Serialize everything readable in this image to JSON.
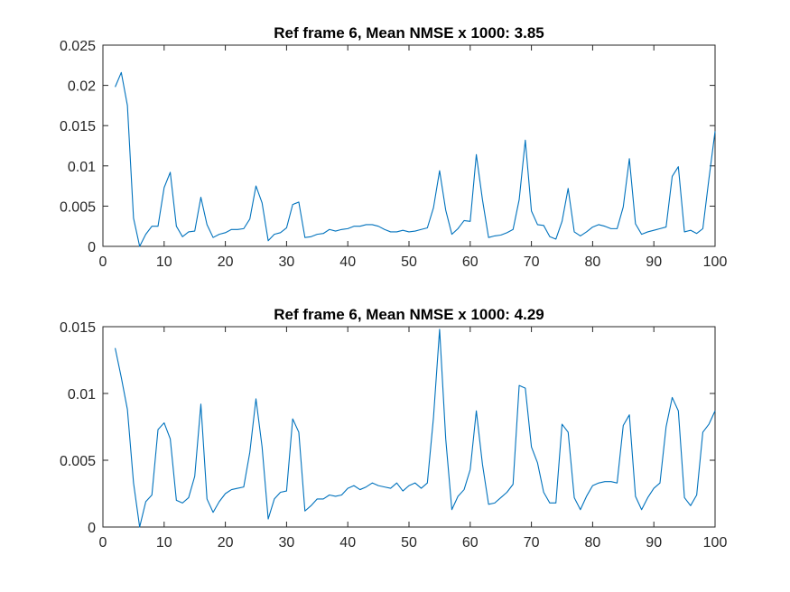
{
  "chart_data": [
    {
      "type": "line",
      "title": "Ref frame 6, Mean NMSE x 1000: 3.85",
      "xlabel": "",
      "ylabel": "",
      "xlim": [
        0,
        100
      ],
      "ylim": [
        0,
        0.025
      ],
      "xticks": [
        0,
        10,
        20,
        30,
        40,
        50,
        60,
        70,
        80,
        90,
        100
      ],
      "yticks": [
        0,
        0.005,
        0.01,
        0.015,
        0.02,
        0.025
      ],
      "xtick_labels": [
        "0",
        "10",
        "20",
        "30",
        "40",
        "50",
        "60",
        "70",
        "80",
        "90",
        "100"
      ],
      "ytick_labels": [
        "0",
        "0.005",
        "0.01",
        "0.015",
        "0.02",
        "0.025"
      ],
      "grid": false,
      "color": "#0072BD",
      "x": [
        2,
        3,
        4,
        5,
        6,
        7,
        8,
        9,
        10,
        11,
        12,
        13,
        14,
        15,
        16,
        17,
        18,
        19,
        20,
        21,
        22,
        23,
        24,
        25,
        26,
        27,
        28,
        29,
        30,
        31,
        32,
        33,
        34,
        35,
        36,
        37,
        38,
        39,
        40,
        41,
        42,
        43,
        44,
        45,
        46,
        47,
        48,
        49,
        50,
        51,
        52,
        53,
        54,
        55,
        56,
        57,
        58,
        59,
        60,
        61,
        62,
        63,
        64,
        65,
        66,
        67,
        68,
        69,
        70,
        71,
        72,
        73,
        74,
        75,
        76,
        77,
        78,
        79,
        80,
        81,
        82,
        83,
        84,
        85,
        86,
        87,
        88,
        89,
        90,
        91,
        92,
        93,
        94,
        95,
        96,
        97,
        98,
        99,
        100
      ],
      "y": [
        0.0198,
        0.0216,
        0.0175,
        0.0035,
        0.0,
        0.0015,
        0.0025,
        0.0025,
        0.0073,
        0.0092,
        0.0025,
        0.0012,
        0.0018,
        0.0019,
        0.0061,
        0.0027,
        0.0011,
        0.0015,
        0.0017,
        0.0021,
        0.0021,
        0.0022,
        0.0034,
        0.0075,
        0.0054,
        0.0007,
        0.0015,
        0.0017,
        0.0023,
        0.0052,
        0.0055,
        0.0011,
        0.0012,
        0.0015,
        0.0016,
        0.0021,
        0.0019,
        0.0021,
        0.0022,
        0.0025,
        0.0025,
        0.0027,
        0.0027,
        0.0025,
        0.0021,
        0.0018,
        0.0018,
        0.002,
        0.0018,
        0.0019,
        0.0021,
        0.0023,
        0.0048,
        0.0094,
        0.0045,
        0.0015,
        0.0022,
        0.0032,
        0.0031,
        0.0114,
        0.0058,
        0.0011,
        0.0013,
        0.0014,
        0.0017,
        0.0021,
        0.0058,
        0.0132,
        0.0044,
        0.0027,
        0.0026,
        0.0012,
        0.0009,
        0.0031,
        0.0072,
        0.0018,
        0.0013,
        0.0018,
        0.0024,
        0.0027,
        0.0025,
        0.0022,
        0.0022,
        0.0049,
        0.0109,
        0.0028,
        0.0015,
        0.0018,
        0.002,
        0.0022,
        0.0024,
        0.0087,
        0.0099,
        0.0018,
        0.002,
        0.0016,
        0.0022,
        0.0084,
        0.0143
      ]
    },
    {
      "type": "line",
      "title": "Ref frame 6, Mean NMSE x 1000: 4.29",
      "xlabel": "",
      "ylabel": "",
      "xlim": [
        0,
        100
      ],
      "ylim": [
        0,
        0.015
      ],
      "xticks": [
        0,
        10,
        20,
        30,
        40,
        50,
        60,
        70,
        80,
        90,
        100
      ],
      "yticks": [
        0,
        0.005,
        0.01,
        0.015
      ],
      "xtick_labels": [
        "0",
        "10",
        "20",
        "30",
        "40",
        "50",
        "60",
        "70",
        "80",
        "90",
        "100"
      ],
      "ytick_labels": [
        "0",
        "0.005",
        "0.01",
        "0.015"
      ],
      "grid": false,
      "color": "#0072BD",
      "x": [
        2,
        3,
        4,
        5,
        6,
        7,
        8,
        9,
        10,
        11,
        12,
        13,
        14,
        15,
        16,
        17,
        18,
        19,
        20,
        21,
        22,
        23,
        24,
        25,
        26,
        27,
        28,
        29,
        30,
        31,
        32,
        33,
        34,
        35,
        36,
        37,
        38,
        39,
        40,
        41,
        42,
        43,
        44,
        45,
        46,
        47,
        48,
        49,
        50,
        51,
        52,
        53,
        54,
        55,
        56,
        57,
        58,
        59,
        60,
        61,
        62,
        63,
        64,
        65,
        66,
        67,
        68,
        69,
        70,
        71,
        72,
        73,
        74,
        75,
        76,
        77,
        78,
        79,
        80,
        81,
        82,
        83,
        84,
        85,
        86,
        87,
        88,
        89,
        90,
        91,
        92,
        93,
        94,
        95,
        96,
        97,
        98,
        99,
        100
      ],
      "y": [
        0.0134,
        0.0112,
        0.0088,
        0.0033,
        0.0,
        0.0019,
        0.0024,
        0.0073,
        0.0078,
        0.0066,
        0.002,
        0.0018,
        0.0022,
        0.0038,
        0.0092,
        0.0021,
        0.0011,
        0.0019,
        0.0025,
        0.0028,
        0.0029,
        0.003,
        0.0056,
        0.0096,
        0.006,
        0.0006,
        0.0021,
        0.0026,
        0.0027,
        0.0081,
        0.0071,
        0.0012,
        0.0016,
        0.0021,
        0.0021,
        0.0024,
        0.0023,
        0.0024,
        0.0029,
        0.0031,
        0.0028,
        0.003,
        0.0033,
        0.0031,
        0.003,
        0.0029,
        0.0033,
        0.0027,
        0.0031,
        0.0033,
        0.0029,
        0.0033,
        0.0082,
        0.0148,
        0.0066,
        0.0013,
        0.0023,
        0.0028,
        0.0043,
        0.0087,
        0.0047,
        0.0017,
        0.0018,
        0.0022,
        0.0026,
        0.0032,
        0.0106,
        0.0104,
        0.006,
        0.0048,
        0.0026,
        0.0018,
        0.0018,
        0.0077,
        0.0071,
        0.0022,
        0.0013,
        0.0023,
        0.0031,
        0.0033,
        0.0034,
        0.0034,
        0.0033,
        0.0076,
        0.0084,
        0.0023,
        0.0013,
        0.0022,
        0.0029,
        0.0033,
        0.0075,
        0.0097,
        0.0087,
        0.0022,
        0.0016,
        0.0024,
        0.0071,
        0.0077,
        0.0087
      ]
    }
  ]
}
